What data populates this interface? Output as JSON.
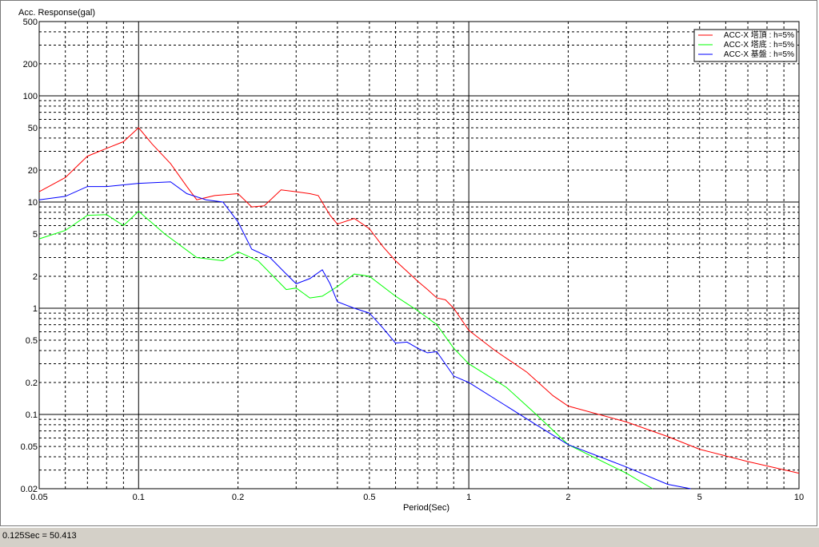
{
  "status": {
    "readout": "0.125Sec = 50.413"
  },
  "chart_data": {
    "type": "line",
    "xlabel": "Period(Sec)",
    "ylabel": "Acc. Response(gal)",
    "xscale": "log",
    "yscale": "log",
    "xlim": [
      0.05,
      10
    ],
    "ylim": [
      0.02,
      500
    ],
    "grid": true,
    "legend_position": "top-right",
    "x_ticks": [
      {
        "v": 0.05,
        "label": "0.05"
      },
      {
        "v": 0.1,
        "label": "0.1"
      },
      {
        "v": 0.2,
        "label": "0.2"
      },
      {
        "v": 0.5,
        "label": "0.5"
      },
      {
        "v": 1,
        "label": "1"
      },
      {
        "v": 2,
        "label": "2"
      },
      {
        "v": 5,
        "label": "5"
      },
      {
        "v": 10,
        "label": "10"
      }
    ],
    "y_ticks": [
      {
        "v": 500,
        "label": "500"
      },
      {
        "v": 200,
        "label": "200"
      },
      {
        "v": 100,
        "label": "100"
      },
      {
        "v": 50,
        "label": "50"
      },
      {
        "v": 20,
        "label": "20"
      },
      {
        "v": 10,
        "label": "10"
      },
      {
        "v": 5,
        "label": "5"
      },
      {
        "v": 2,
        "label": "2"
      },
      {
        "v": 1,
        "label": "1"
      },
      {
        "v": 0.5,
        "label": "0.5"
      },
      {
        "v": 0.2,
        "label": "0.2"
      },
      {
        "v": 0.1,
        "label": "0.1"
      },
      {
        "v": 0.05,
        "label": "0.05"
      },
      {
        "v": 0.02,
        "label": "0.02"
      }
    ],
    "series": [
      {
        "name": "ACC-X 塔頂 : h=5%",
        "color": "#ff0000",
        "points": [
          [
            0.05,
            12.5
          ],
          [
            0.06,
            17
          ],
          [
            0.07,
            27
          ],
          [
            0.08,
            32
          ],
          [
            0.09,
            37
          ],
          [
            0.1,
            50
          ],
          [
            0.11,
            35
          ],
          [
            0.125,
            23
          ],
          [
            0.14,
            14
          ],
          [
            0.15,
            10.5
          ],
          [
            0.17,
            11.5
          ],
          [
            0.2,
            12
          ],
          [
            0.22,
            9
          ],
          [
            0.24,
            9.2
          ],
          [
            0.27,
            13
          ],
          [
            0.3,
            12.5
          ],
          [
            0.33,
            12
          ],
          [
            0.35,
            11.5
          ],
          [
            0.38,
            7.5
          ],
          [
            0.4,
            6.2
          ],
          [
            0.45,
            7
          ],
          [
            0.5,
            5.6
          ],
          [
            0.55,
            3.8
          ],
          [
            0.6,
            2.8
          ],
          [
            0.7,
            1.8
          ],
          [
            0.75,
            1.5
          ],
          [
            0.8,
            1.25
          ],
          [
            0.85,
            1.2
          ],
          [
            0.9,
            1
          ],
          [
            1,
            0.62
          ],
          [
            1.2,
            0.4
          ],
          [
            1.5,
            0.25
          ],
          [
            1.8,
            0.15
          ],
          [
            2,
            0.12
          ],
          [
            3,
            0.085
          ],
          [
            4,
            0.062
          ],
          [
            5,
            0.047
          ],
          [
            7,
            0.036
          ],
          [
            10,
            0.028
          ]
        ]
      },
      {
        "name": "ACC-X 塔底 : h=5%",
        "color": "#00ff00",
        "points": [
          [
            0.05,
            4.5
          ],
          [
            0.06,
            5.4
          ],
          [
            0.07,
            7.5
          ],
          [
            0.08,
            7.6
          ],
          [
            0.09,
            6
          ],
          [
            0.1,
            8.2
          ],
          [
            0.12,
            5
          ],
          [
            0.15,
            3
          ],
          [
            0.18,
            2.8
          ],
          [
            0.2,
            3.4
          ],
          [
            0.23,
            2.8
          ],
          [
            0.28,
            1.5
          ],
          [
            0.3,
            1.55
          ],
          [
            0.33,
            1.25
          ],
          [
            0.36,
            1.3
          ],
          [
            0.4,
            1.6
          ],
          [
            0.45,
            2.1
          ],
          [
            0.5,
            2
          ],
          [
            0.6,
            1.3
          ],
          [
            0.7,
            0.95
          ],
          [
            0.8,
            0.7
          ],
          [
            0.9,
            0.42
          ],
          [
            1,
            0.3
          ],
          [
            1.3,
            0.18
          ],
          [
            1.6,
            0.1
          ],
          [
            2,
            0.052
          ],
          [
            3,
            0.028
          ],
          [
            3.6,
            0.02
          ]
        ]
      },
      {
        "name": "ACC-X 基盤 : h=5%",
        "color": "#0000ff",
        "points": [
          [
            0.05,
            10.5
          ],
          [
            0.06,
            11.3
          ],
          [
            0.07,
            14
          ],
          [
            0.08,
            14
          ],
          [
            0.09,
            14.5
          ],
          [
            0.1,
            15
          ],
          [
            0.125,
            15.5
          ],
          [
            0.14,
            12
          ],
          [
            0.16,
            10.5
          ],
          [
            0.18,
            10
          ],
          [
            0.2,
            6.5
          ],
          [
            0.22,
            3.6
          ],
          [
            0.25,
            3
          ],
          [
            0.28,
            2.1
          ],
          [
            0.3,
            1.7
          ],
          [
            0.33,
            1.9
          ],
          [
            0.36,
            2.3
          ],
          [
            0.38,
            1.7
          ],
          [
            0.4,
            1.15
          ],
          [
            0.45,
            1
          ],
          [
            0.5,
            0.9
          ],
          [
            0.55,
            0.65
          ],
          [
            0.6,
            0.47
          ],
          [
            0.65,
            0.48
          ],
          [
            0.7,
            0.42
          ],
          [
            0.75,
            0.38
          ],
          [
            0.8,
            0.39
          ],
          [
            0.9,
            0.23
          ],
          [
            1,
            0.2
          ],
          [
            1.3,
            0.12
          ],
          [
            1.6,
            0.08
          ],
          [
            2,
            0.052
          ],
          [
            3,
            0.032
          ],
          [
            4,
            0.022
          ],
          [
            4.7,
            0.02
          ]
        ]
      }
    ]
  }
}
